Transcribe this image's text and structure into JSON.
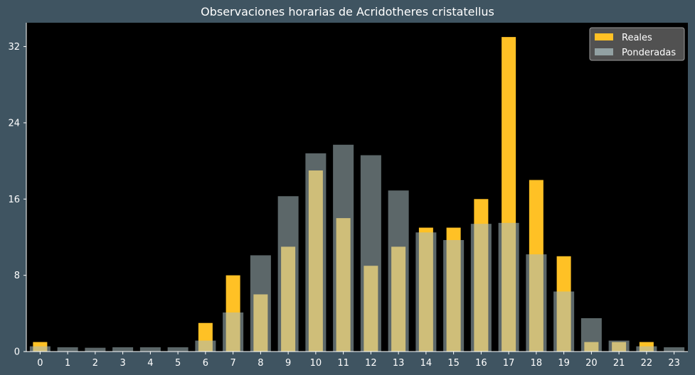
{
  "chart_data": {
    "type": "bar",
    "title": "Observaciones horarias de Acridotheres cristatellus",
    "xlabel": "",
    "ylabel": "",
    "categories": [
      "0",
      "1",
      "2",
      "3",
      "4",
      "5",
      "6",
      "7",
      "8",
      "9",
      "10",
      "11",
      "12",
      "13",
      "14",
      "15",
      "16",
      "17",
      "18",
      "19",
      "20",
      "21",
      "22",
      "23"
    ],
    "ylim": [
      0,
      34.5
    ],
    "yticks": [
      0,
      8,
      16,
      24,
      32
    ],
    "grid": false,
    "legend_position": "top-right",
    "series": [
      {
        "name": "Reales",
        "color": "#ffc125",
        "values": [
          1,
          0,
          0,
          0,
          0,
          0,
          3,
          8,
          6,
          11,
          19,
          14,
          9,
          11,
          13,
          13,
          16,
          33,
          18,
          10,
          1,
          1,
          1,
          0
        ]
      },
      {
        "name": "Ponderadas",
        "color": "#a8bcbf",
        "values": [
          0.55,
          0.45,
          0.4,
          0.45,
          0.45,
          0.45,
          1.15,
          4.1,
          10.1,
          16.3,
          20.8,
          21.7,
          20.6,
          16.9,
          12.5,
          11.7,
          13.4,
          13.5,
          10.2,
          6.3,
          3.5,
          1.15,
          0.55,
          0.45
        ]
      }
    ]
  }
}
